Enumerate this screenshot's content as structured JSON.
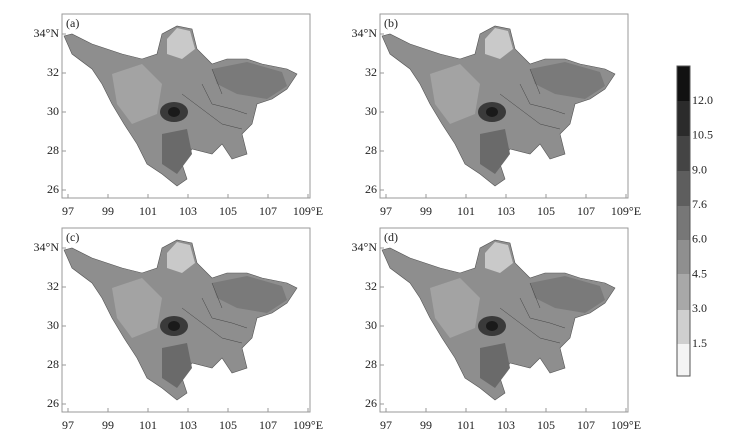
{
  "panels": [
    {
      "label": "(a)"
    },
    {
      "label": "(b)"
    },
    {
      "label": "(c)"
    },
    {
      "label": "(d)"
    }
  ],
  "x_tick_labels": [
    "97",
    "99",
    "101",
    "103",
    "105",
    "107",
    "109°E"
  ],
  "y_tick_labels": [
    "34°N",
    "32",
    "30",
    "28",
    "26"
  ],
  "colorbar": {
    "tick_labels": [
      "1.5",
      "3.0",
      "4.5",
      "6.0",
      "7.6",
      "9.0",
      "10.5",
      "12.0"
    ]
  }
}
